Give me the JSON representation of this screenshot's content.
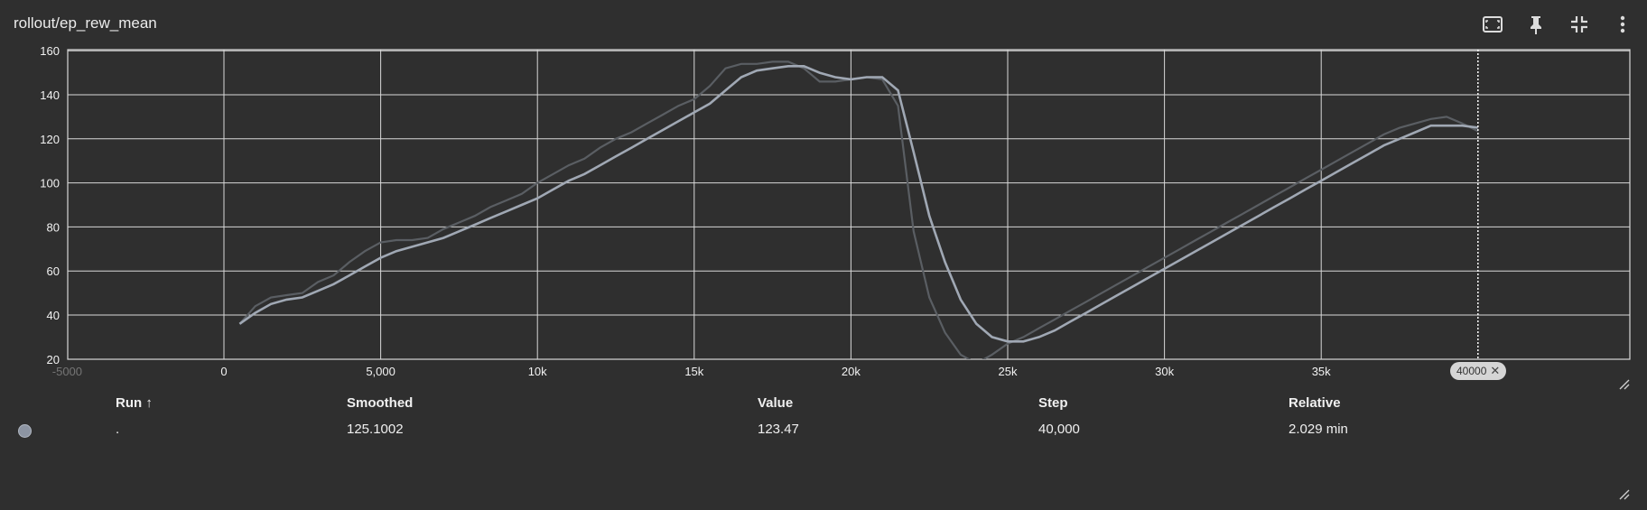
{
  "card": {
    "title": "rollout/ep_rew_mean"
  },
  "toolbar": {
    "icons": [
      "fit-domain-icon",
      "pin-icon",
      "collapse-icon",
      "more-vert-icon"
    ]
  },
  "colors": {
    "background": "#2f2f2f",
    "grid": "#d8d8d8",
    "smoothed_line": "#a0a8b4",
    "raw_line": "#5a5e63",
    "run_dot": "#8c94a2"
  },
  "chart_data": {
    "type": "line",
    "title": "rollout/ep_rew_mean",
    "xlabel": "",
    "ylabel": "",
    "xlim": [
      -5000,
      45000
    ],
    "ylim": [
      20,
      160
    ],
    "x_ticks": [
      {
        "value": -5000,
        "label": "-5000"
      },
      {
        "value": 0,
        "label": "0"
      },
      {
        "value": 5000,
        "label": "5,000"
      },
      {
        "value": 10000,
        "label": "10k"
      },
      {
        "value": 15000,
        "label": "15k"
      },
      {
        "value": 20000,
        "label": "20k"
      },
      {
        "value": 25000,
        "label": "25k"
      },
      {
        "value": 30000,
        "label": "30k"
      },
      {
        "value": 35000,
        "label": "35k"
      }
    ],
    "y_ticks": [
      {
        "value": 20,
        "label": "20"
      },
      {
        "value": 40,
        "label": "40"
      },
      {
        "value": 60,
        "label": "60"
      },
      {
        "value": 80,
        "label": "80"
      },
      {
        "value": 100,
        "label": "100"
      },
      {
        "value": 120,
        "label": "120"
      },
      {
        "value": 140,
        "label": "140"
      },
      {
        "value": 160,
        "label": "160"
      }
    ],
    "grid": true,
    "hover_step": 40000,
    "hover_step_label": "40000",
    "series": [
      {
        "role": "raw",
        "x": [
          500,
          1000,
          1500,
          2000,
          2500,
          3000,
          3500,
          4000,
          4500,
          5000,
          5500,
          6000,
          6500,
          7000,
          7500,
          8000,
          8500,
          9000,
          9500,
          10000,
          10500,
          11000,
          11500,
          12000,
          12500,
          13000,
          13500,
          14000,
          14500,
          15000,
          15500,
          16000,
          16500,
          17000,
          17500,
          18000,
          18500,
          19000,
          19500,
          20000,
          20500,
          21000,
          21500,
          22000,
          22500,
          23000,
          23500,
          24000,
          24500,
          25000,
          25500,
          26000,
          26500,
          27000,
          27500,
          28000,
          28500,
          29000,
          29500,
          30000,
          30500,
          31000,
          31500,
          32000,
          32500,
          33000,
          33500,
          34000,
          34500,
          35000,
          35500,
          36000,
          36500,
          37000,
          37500,
          38000,
          38500,
          39000,
          39500,
          40000
        ],
        "y": [
          36,
          44,
          48,
          49,
          50,
          55,
          58,
          64,
          69,
          73,
          74,
          74,
          75,
          79,
          82,
          85,
          89,
          92,
          95,
          100,
          104,
          108,
          111,
          116,
          120,
          123,
          127,
          131,
          135,
          138,
          144,
          152,
          154,
          154,
          155,
          155,
          152,
          146,
          146,
          147,
          148,
          147,
          135,
          78,
          48,
          32,
          22,
          18,
          22,
          27,
          30,
          34,
          38,
          42,
          46,
          50,
          54,
          58,
          62,
          66,
          70,
          74,
          78,
          82,
          86,
          90,
          94,
          98,
          102,
          106,
          110,
          114,
          118,
          122,
          125,
          127,
          129,
          130,
          127,
          123.47
        ]
      },
      {
        "role": "smoothed",
        "x": [
          500,
          1000,
          1500,
          2000,
          2500,
          3000,
          3500,
          4000,
          4500,
          5000,
          5500,
          6000,
          6500,
          7000,
          7500,
          8000,
          8500,
          9000,
          9500,
          10000,
          10500,
          11000,
          11500,
          12000,
          12500,
          13000,
          13500,
          14000,
          14500,
          15000,
          15500,
          16000,
          16500,
          17000,
          17500,
          18000,
          18500,
          19000,
          19500,
          20000,
          20500,
          21000,
          21500,
          22000,
          22500,
          23000,
          23500,
          24000,
          24500,
          25000,
          25500,
          26000,
          26500,
          27000,
          27500,
          28000,
          28500,
          29000,
          29500,
          30000,
          30500,
          31000,
          31500,
          32000,
          32500,
          33000,
          33500,
          34000,
          34500,
          35000,
          35500,
          36000,
          36500,
          37000,
          37500,
          38000,
          38500,
          39000,
          39500,
          40000
        ],
        "y": [
          36,
          41,
          45,
          47,
          48,
          51,
          54,
          58,
          62,
          66,
          69,
          71,
          73,
          75,
          78,
          81,
          84,
          87,
          90,
          93,
          97,
          101,
          104,
          108,
          112,
          116,
          120,
          124,
          128,
          132,
          136,
          142,
          148,
          151,
          152,
          153,
          153,
          150,
          148,
          147,
          148,
          148,
          142,
          114,
          85,
          64,
          47,
          36,
          30,
          28,
          28,
          30,
          33,
          37,
          41,
          45,
          49,
          53,
          57,
          61,
          65,
          69,
          73,
          77,
          81,
          85,
          89,
          93,
          97,
          101,
          105,
          109,
          113,
          117,
          120,
          123,
          126,
          126,
          126,
          125.1002
        ]
      }
    ]
  },
  "table": {
    "headers": {
      "run": "Run ↑",
      "smoothed": "Smoothed",
      "value": "Value",
      "step": "Step",
      "relative": "Relative"
    },
    "rows": [
      {
        "run": ".",
        "smoothed": "125.1002",
        "value": "123.47",
        "step": "40,000",
        "relative": "2.029 min"
      }
    ]
  }
}
